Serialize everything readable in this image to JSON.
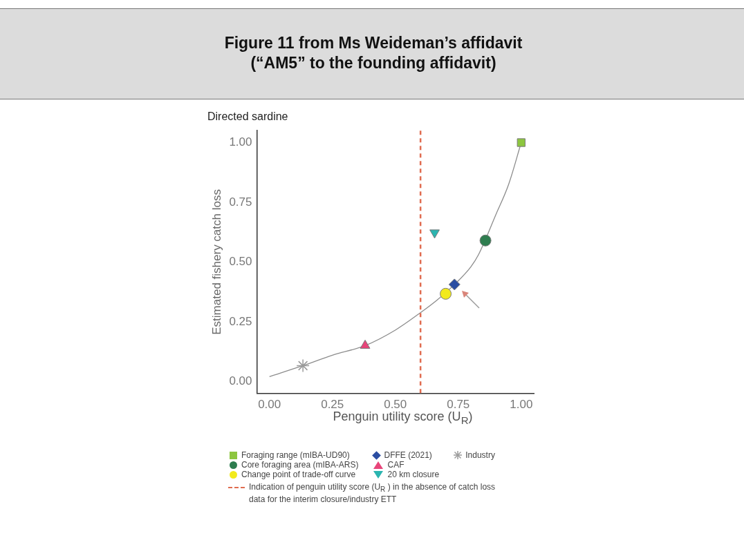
{
  "chart_data": {
    "type": "scatter",
    "title": "Figure 11 from Ms Weideman’s affidavit (“AM5” to the founding affidavit)",
    "subtitle": "Directed sardine",
    "xlabel": "Penguin utility score (U$_{R}$)",
    "ylabel": "Estimated fishery catch loss",
    "xlim": [
      -0.05,
      1.05
    ],
    "ylim": [
      -0.05,
      1.05
    ],
    "xticks": [
      {
        "value": 0,
        "label": "0.00"
      },
      {
        "value": 0.25,
        "label": "0.25"
      },
      {
        "value": 0.5,
        "label": "0.50"
      },
      {
        "value": 0.75,
        "label": "0.75"
      },
      {
        "value": 1,
        "label": "1.00"
      }
    ],
    "yticks": [
      {
        "value": 0,
        "label": "0.00"
      },
      {
        "value": 0.25,
        "label": "0.25"
      },
      {
        "value": 0.5,
        "label": "0.50"
      },
      {
        "value": 0.75,
        "label": "0.75"
      },
      {
        "value": 1,
        "label": "1.00"
      }
    ],
    "legend": "bottom",
    "series": [
      {
        "type": "line",
        "color": "#8c8c8c",
        "marker": "none",
        "line_style": "solid",
        "x": [
          0,
          0.133,
          0.25,
          0.38,
          0.5,
          0.6,
          0.665,
          0.735,
          0.8,
          0.83,
          0.9,
          0.95,
          1.0
        ],
        "values": [
          0.02,
          0.066,
          0.11,
          0.15,
          0.215,
          0.288,
          0.34,
          0.406,
          0.48,
          0.53,
          0.7,
          0.825,
          1.0
        ]
      },
      {
        "name": "Foraging range (mIBA-UD90)",
        "color": "#8dc63f",
        "marker": "square",
        "x": [
          1.0
        ],
        "values": [
          1.0
        ]
      },
      {
        "name": "Core foraging area (mIBA-ARS)",
        "color": "#2e7d4f",
        "marker": "circle",
        "x": [
          0.858
        ],
        "values": [
          0.59
        ]
      },
      {
        "name": "Change point of trade-off curve",
        "color": "#f2ea1c",
        "marker": "circle",
        "x": [
          0.7
        ],
        "values": [
          0.367
        ]
      },
      {
        "name": "DFFE (2021)",
        "color": "#2b4ea2",
        "marker": "diamond",
        "x": [
          0.735
        ],
        "values": [
          0.406
        ]
      },
      {
        "name": "CAF",
        "color": "#e8457a",
        "marker": "triangle",
        "x": [
          0.38
        ],
        "values": [
          0.15
        ]
      },
      {
        "name": "20 km closure",
        "color": "#2bb5b0",
        "marker": "triangle-down",
        "x": [
          0.656
        ],
        "values": [
          0.623
        ]
      },
      {
        "name": "Industry",
        "color": "#9a9a9a",
        "marker": "cross",
        "x": [
          0.133
        ],
        "values": [
          0.066
        ]
      }
    ],
    "ref_lines": [
      {
        "axis": "x",
        "value": 0.6,
        "color": "#e06c50",
        "line_style": "dashed",
        "label": "Indication of penguin utility score (U$_{R}$ ) in the absence of catch loss data for the interim closure/industry ETT"
      }
    ]
  }
}
